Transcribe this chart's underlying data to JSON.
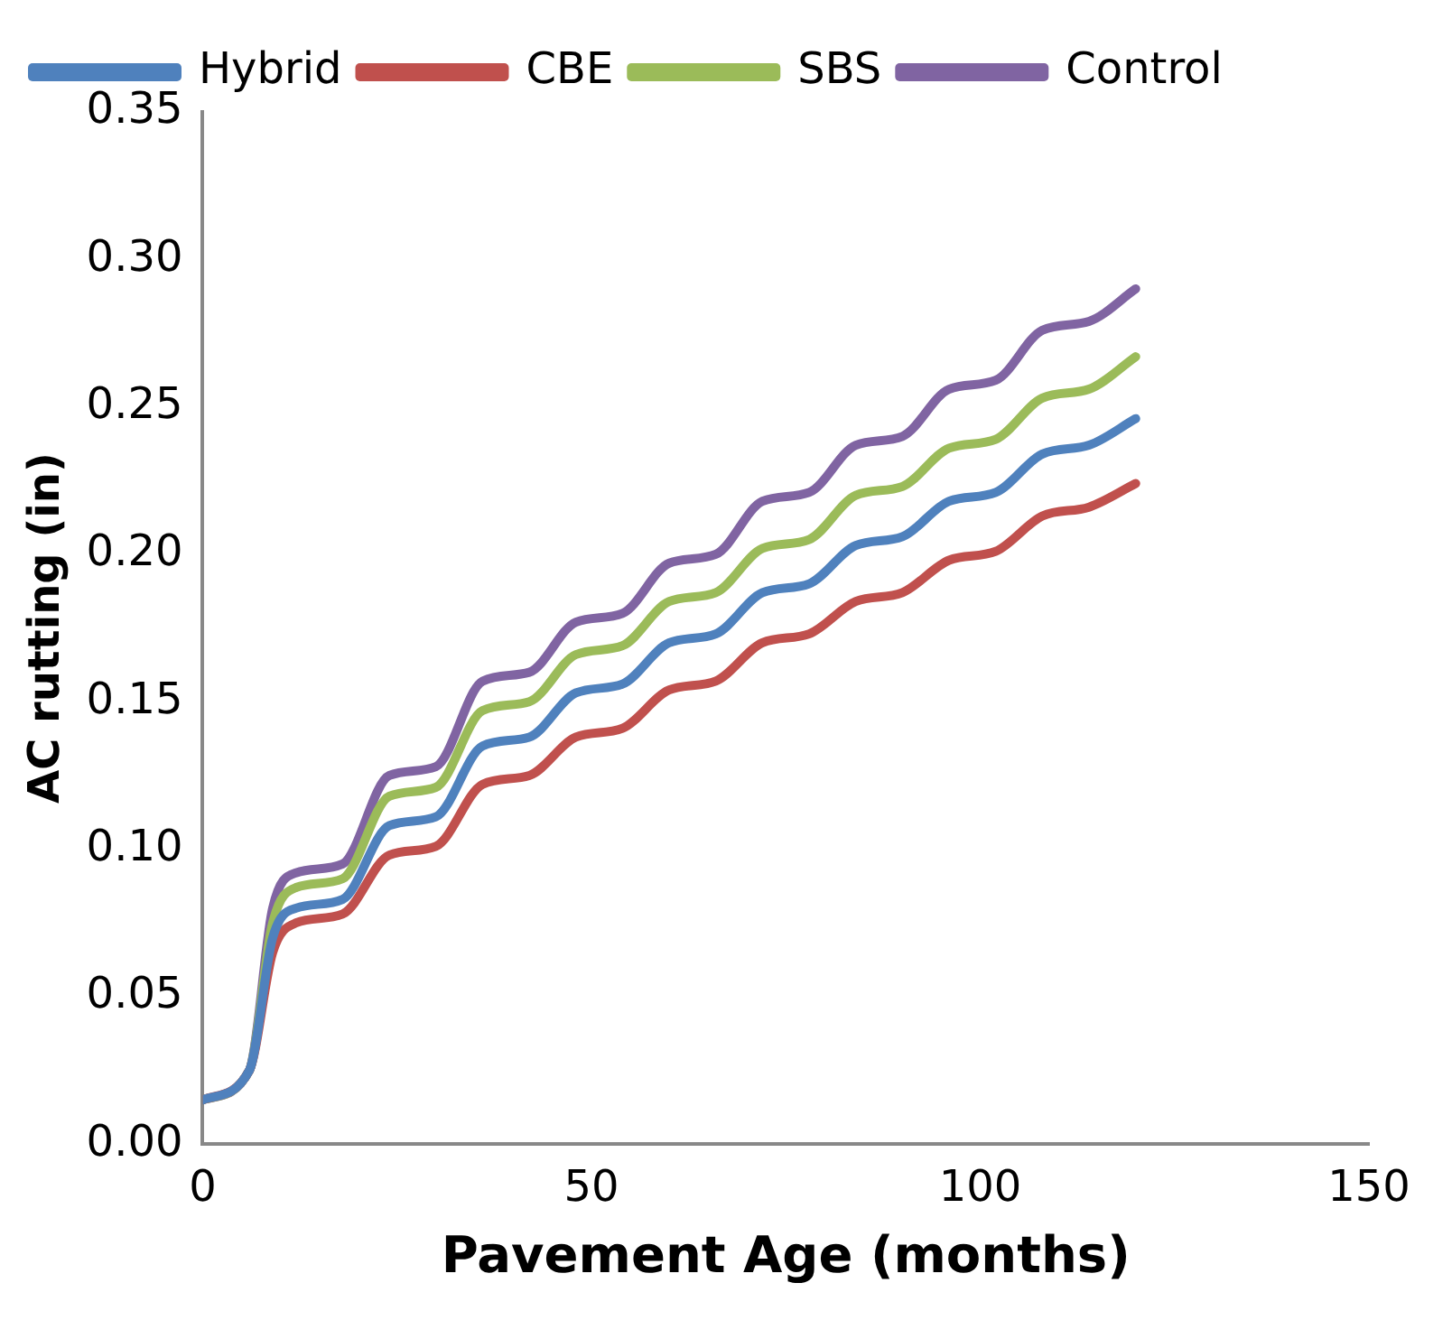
{
  "chart_data": {
    "type": "line",
    "xlabel": "Pavement Age (months)",
    "ylabel": "AC rutting (in)",
    "x": [
      0,
      6,
      9,
      12,
      18,
      24,
      30,
      36,
      42,
      48,
      54,
      60,
      66,
      72,
      78,
      84,
      90,
      96,
      102,
      108,
      114,
      120
    ],
    "series": [
      {
        "name": "Hybrid",
        "color": "#4f81bd",
        "values": [
          0.015,
          0.025,
          0.07,
          0.08,
          0.083,
          0.108,
          0.111,
          0.135,
          0.138,
          0.153,
          0.156,
          0.17,
          0.173,
          0.187,
          0.19,
          0.203,
          0.206,
          0.218,
          0.221,
          0.234,
          0.237,
          0.246
        ]
      },
      {
        "name": "CBE",
        "color": "#c0504d",
        "values": [
          0.015,
          0.025,
          0.065,
          0.075,
          0.078,
          0.098,
          0.101,
          0.122,
          0.125,
          0.138,
          0.141,
          0.154,
          0.157,
          0.17,
          0.173,
          0.184,
          0.187,
          0.198,
          0.201,
          0.213,
          0.216,
          0.224
        ]
      },
      {
        "name": "SBS",
        "color": "#9bbb59",
        "values": [
          0.015,
          0.025,
          0.075,
          0.087,
          0.09,
          0.118,
          0.121,
          0.147,
          0.15,
          0.166,
          0.169,
          0.184,
          0.187,
          0.202,
          0.205,
          0.22,
          0.223,
          0.236,
          0.239,
          0.253,
          0.256,
          0.267
        ]
      },
      {
        "name": "Control",
        "color": "#8064a2",
        "values": [
          0.015,
          0.025,
          0.08,
          0.092,
          0.095,
          0.125,
          0.128,
          0.157,
          0.16,
          0.177,
          0.18,
          0.197,
          0.2,
          0.218,
          0.221,
          0.237,
          0.24,
          0.256,
          0.259,
          0.276,
          0.279,
          0.29
        ]
      }
    ],
    "xlim": [
      0,
      150
    ],
    "xticks": [
      0,
      50,
      100,
      150
    ],
    "ylim": [
      0,
      0.35
    ],
    "yticks": [
      {
        "value": 0,
        "label": "0.00"
      },
      {
        "value": 0.05,
        "label": "0.05"
      },
      {
        "value": 0.1,
        "label": "0.10"
      },
      {
        "value": 0.15,
        "label": "0.15"
      },
      {
        "value": 0.2,
        "label": "0.20"
      },
      {
        "value": 0.25,
        "label": "0.25"
      },
      {
        "value": 0.3,
        "label": "0.30"
      },
      {
        "value": 0.35,
        "label": "0.35"
      }
    ],
    "legend": "top left",
    "marker": "none",
    "line_style": "solid",
    "grid": false
  }
}
